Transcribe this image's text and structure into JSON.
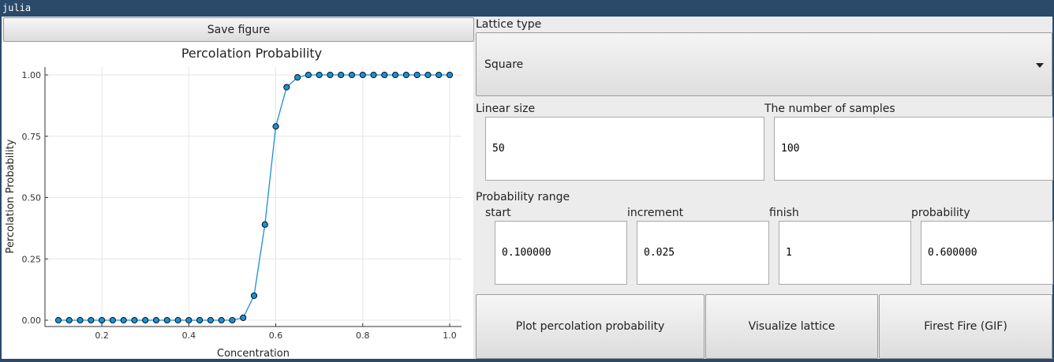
{
  "window": {
    "title": "julia"
  },
  "toolbar": {
    "save_label": "Save figure"
  },
  "chart_data": {
    "type": "line",
    "title": "Percolation Probability",
    "xlabel": "Concentration",
    "ylabel": "Percolation Probability",
    "xlim": [
      0.1,
      1.0
    ],
    "ylim": [
      0.0,
      1.0
    ],
    "x_ticks": [
      "0.2",
      "0.4",
      "0.6",
      "0.8",
      "1.0"
    ],
    "y_ticks": [
      "0.00",
      "0.25",
      "0.50",
      "0.75",
      "1.00"
    ],
    "grid": true,
    "legend": "none",
    "line_color": "#1b8fd6",
    "marker_color": "#1b8fd6",
    "series": [
      {
        "x": [
          0.1,
          0.125,
          0.15,
          0.175,
          0.2,
          0.225,
          0.25,
          0.275,
          0.3,
          0.325,
          0.35,
          0.375,
          0.4,
          0.425,
          0.45,
          0.475,
          0.5,
          0.525,
          0.55,
          0.575,
          0.6,
          0.625,
          0.65,
          0.675,
          0.7,
          0.725,
          0.75,
          0.775,
          0.8,
          0.825,
          0.85,
          0.875,
          0.9,
          0.925,
          0.95,
          0.975,
          1.0
        ],
        "values": [
          0,
          0,
          0,
          0,
          0,
          0,
          0,
          0,
          0,
          0,
          0,
          0,
          0,
          0,
          0,
          0,
          0,
          0.01,
          0.1,
          0.39,
          0.79,
          0.95,
          0.99,
          1,
          1,
          1,
          1,
          1,
          1,
          1,
          1,
          1,
          1,
          1,
          1,
          1,
          1
        ]
      }
    ]
  },
  "controls": {
    "lattice_type_label": "Lattice type",
    "lattice_type_value": "Square",
    "linear_size_label": "Linear size",
    "linear_size_value": "50",
    "samples_label": "The number of samples",
    "samples_value": "100",
    "prob_range_label": "Probability range",
    "start_label": "start",
    "start_value": "0.100000",
    "increment_label": "increment",
    "increment_value": "0.025",
    "finish_label": "finish",
    "finish_value": "1",
    "probability_label": "probability",
    "probability_value": "0.600000"
  },
  "buttons": {
    "plot_label": "Plot percolation probability",
    "visualize_label": "Visualize lattice",
    "fire_label": "Firest Fire (GIF)"
  }
}
